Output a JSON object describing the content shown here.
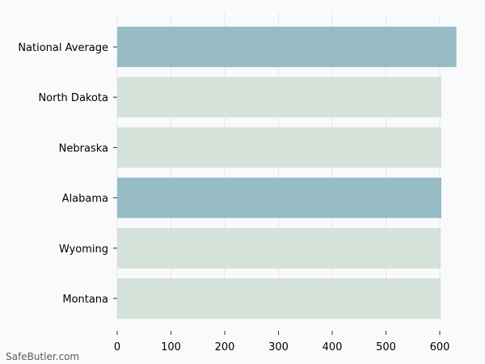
{
  "chart_data": {
    "type": "bar",
    "orientation": "horizontal",
    "categories": [
      "National Average",
      "North Dakota",
      "Nebraska",
      "Alabama",
      "Wyoming",
      "Montana"
    ],
    "values": [
      631,
      603,
      603,
      603,
      602,
      602
    ],
    "highlighted": [
      true,
      false,
      false,
      true,
      false,
      false
    ],
    "colors": {
      "highlight": "#97bcc5",
      "default": "#d5e2d9",
      "grid": "#e6e6e6",
      "background": "#f9fafc"
    },
    "xlim": [
      0,
      640
    ],
    "xticks": [
      0,
      100,
      200,
      300,
      400,
      500,
      600
    ],
    "grid": true,
    "title": "",
    "xlabel": "",
    "ylabel": ""
  },
  "watermark": "SafeButler.com"
}
